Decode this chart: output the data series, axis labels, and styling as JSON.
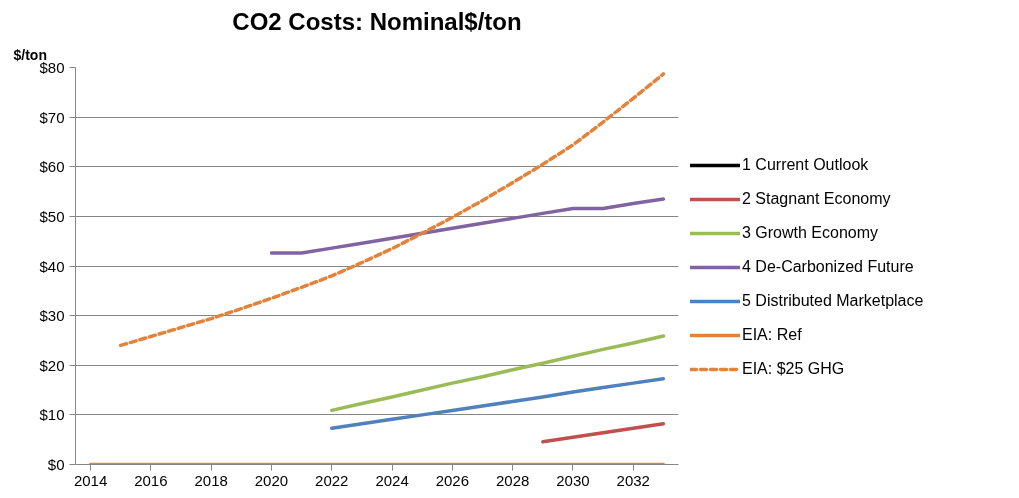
{
  "chart_data": {
    "type": "line",
    "title": "CO2 Costs: Nominal$/ton",
    "ylabel": "$/ton",
    "x": [
      2014,
      2015,
      2016,
      2017,
      2018,
      2019,
      2020,
      2021,
      2022,
      2023,
      2024,
      2025,
      2026,
      2027,
      2028,
      2029,
      2030,
      2031,
      2032,
      2033
    ],
    "xlim": [
      2013.5,
      2033.5
    ],
    "xticks": [
      2014,
      2016,
      2018,
      2020,
      2022,
      2024,
      2026,
      2028,
      2030,
      2032
    ],
    "ylim": [
      0,
      80
    ],
    "yticks": [
      {
        "value": 0,
        "label": "$0"
      },
      {
        "value": 10,
        "label": "$10"
      },
      {
        "value": 20,
        "label": "$20"
      },
      {
        "value": 30,
        "label": "$30"
      },
      {
        "value": 40,
        "label": "$40"
      },
      {
        "value": 50,
        "label": "$50"
      },
      {
        "value": 60,
        "label": "$60"
      },
      {
        "value": 70,
        "label": "$70"
      },
      {
        "value": 80,
        "label": "$80"
      }
    ],
    "grid": "y",
    "legend": "right",
    "line_style": "solid",
    "marker": "none",
    "series": [
      {
        "name": "1 Current Outlook",
        "color": "#000000",
        "values": [
          null,
          null,
          null,
          null,
          null,
          null,
          null,
          null,
          null,
          null,
          null,
          null,
          null,
          null,
          null,
          null,
          null,
          null,
          null,
          null
        ]
      },
      {
        "name": "2 Stagnant Economy",
        "color": "#c0504d",
        "values": [
          null,
          null,
          null,
          null,
          null,
          null,
          null,
          null,
          null,
          null,
          null,
          null,
          null,
          null,
          null,
          4.6,
          5.5,
          6.4,
          7.3,
          8.2
        ]
      },
      {
        "name": "3 Growth Economy",
        "color": "#9bbb59",
        "values": [
          null,
          null,
          null,
          null,
          null,
          null,
          null,
          null,
          10.9,
          12.3,
          13.6,
          15.0,
          16.4,
          17.7,
          19.1,
          20.4,
          21.8,
          23.2,
          24.5,
          25.9
        ]
      },
      {
        "name": "4 De-Carbonized Future",
        "color": "#8064a2",
        "values": [
          null,
          null,
          null,
          null,
          null,
          null,
          42.6,
          42.6,
          43.6,
          44.6,
          45.6,
          46.6,
          47.6,
          48.6,
          49.6,
          50.6,
          51.6,
          51.6,
          52.6,
          53.5
        ]
      },
      {
        "name": "5 Distributed Marketplace",
        "color": "#4f81bd",
        "values": [
          null,
          null,
          null,
          null,
          null,
          null,
          null,
          null,
          7.3,
          8.2,
          9.1,
          10.0,
          10.9,
          11.8,
          12.7,
          13.6,
          14.6,
          15.5,
          16.4,
          17.3
        ]
      },
      {
        "name": "EIA: Ref",
        "color": "#e3823a",
        "values": [
          0,
          0,
          0,
          0,
          0,
          0,
          0,
          0,
          0,
          0,
          0,
          0,
          0,
          0,
          0,
          0,
          0,
          0,
          0,
          0
        ]
      },
      {
        "name": "EIA: $25 GHG",
        "color": "#e3823a",
        "line_style": "dashed",
        "values": [
          null,
          24.0,
          25.8,
          27.6,
          29.4,
          31.4,
          33.5,
          35.7,
          38.0,
          40.7,
          43.5,
          46.6,
          49.8,
          53.2,
          56.8,
          60.5,
          64.4,
          69.0,
          73.8,
          78.7
        ]
      }
    ]
  }
}
